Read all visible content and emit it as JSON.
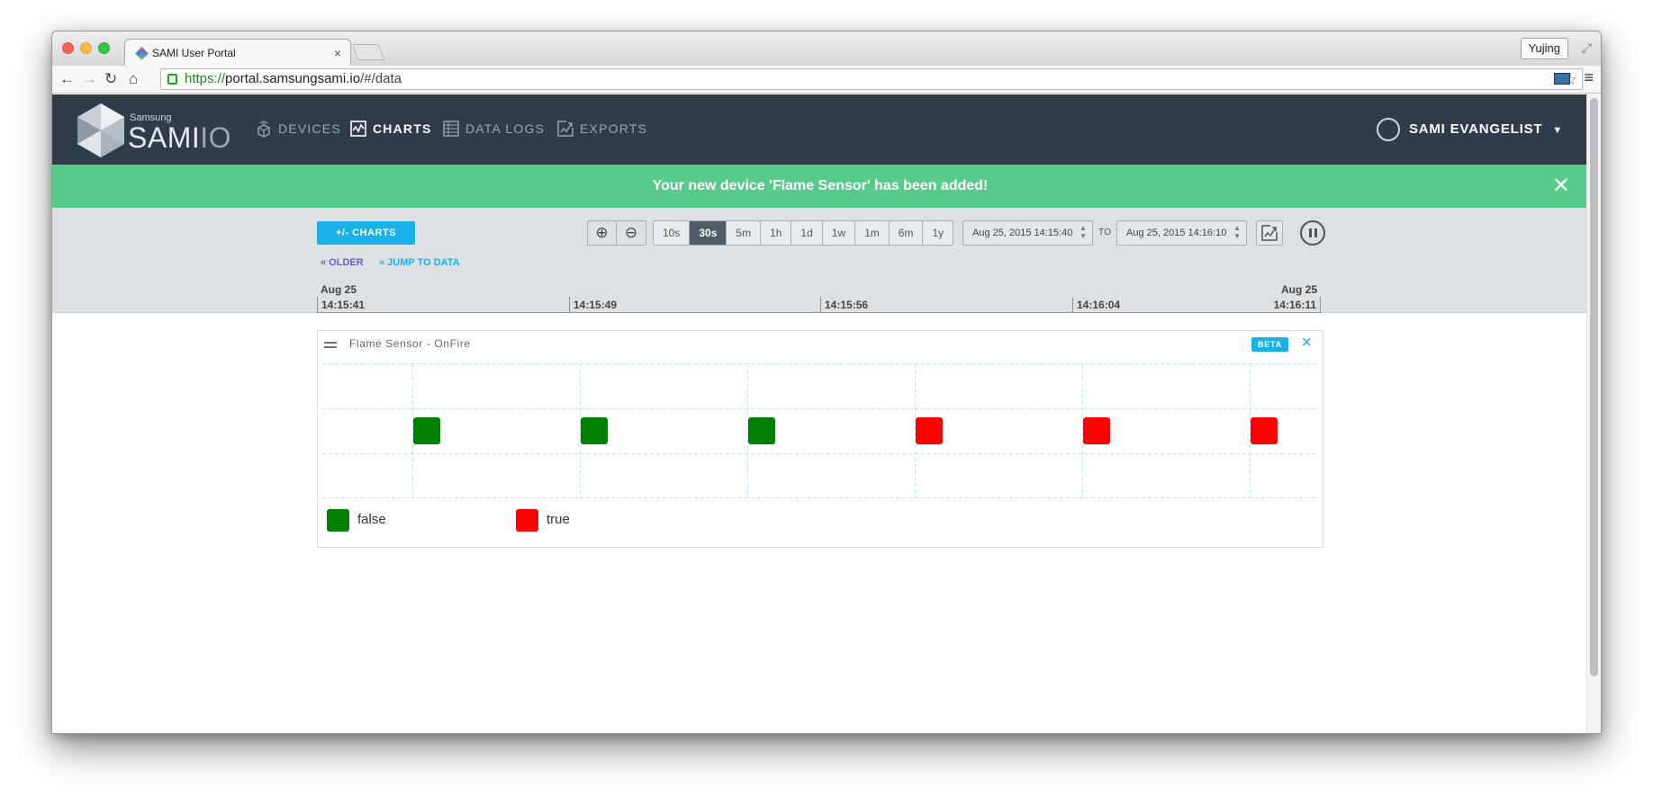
{
  "browser": {
    "tab_title": "SAMI User Portal",
    "tab_close": "×",
    "profile_name": "Yujing",
    "url_scheme": "https://",
    "url_host": "portal.samsungsami.io",
    "url_path": "/#/data",
    "icons": [
      "back-icon",
      "forward-icon",
      "reload-icon",
      "home-icon",
      "lock-icon",
      "star-icon",
      "cast-icon",
      "menu-icon"
    ]
  },
  "header": {
    "logo_samsung": "Samsung",
    "logo_sami": "SAMI",
    "logo_io": "IO",
    "nav": [
      {
        "label": "DEVICES",
        "icon": "devices-icon"
      },
      {
        "label": "CHARTS",
        "icon": "charts-icon",
        "active": true
      },
      {
        "label": "DATA LOGS",
        "icon": "data-logs-icon"
      },
      {
        "label": "EXPORTS",
        "icon": "exports-icon"
      }
    ],
    "user_name": "SAMI EVANGELIST"
  },
  "banner": {
    "message": "Your new device 'Flame Sensor' has been added!",
    "color": "#57cc8a"
  },
  "controls": {
    "charts_button": "+/- CHARTS",
    "ranges": [
      "10s",
      "30s",
      "5m",
      "1h",
      "1d",
      "1w",
      "1m",
      "6m",
      "1y"
    ],
    "selected_range": "30s",
    "from_date": "Aug 25, 2015 14:15:40",
    "to_label": "TO",
    "to_date": "Aug 25, 2015 14:16:10",
    "older_link": "« OLDER",
    "jump_link": "« JUMP TO DATA"
  },
  "timeline": {
    "start_date": "Aug 25",
    "end_date": "Aug 25",
    "ticks": [
      "14:15:41",
      "14:15:49",
      "14:15:56",
      "14:16:04",
      "14:16:11"
    ]
  },
  "chart_card": {
    "title": "Flame Sensor - OnFire",
    "badge": "BETA",
    "close": "×"
  },
  "chart_data": {
    "type": "scatter",
    "title": "Flame Sensor - OnFire",
    "x": [
      "14:15:43",
      "14:15:48",
      "14:15:53",
      "14:15:58",
      "14:16:03",
      "14:16:08"
    ],
    "values": [
      false,
      false,
      false,
      true,
      true,
      true
    ],
    "legend": [
      {
        "name": "false",
        "color": "#008000"
      },
      {
        "name": "true",
        "color": "#ff0000"
      }
    ],
    "grid": true,
    "legend_position": "bottom-left"
  },
  "colors": {
    "header_bg": "#2f3d4a",
    "accent": "#1ab0e8",
    "false_color": "#008000",
    "true_color": "#ff0000"
  }
}
